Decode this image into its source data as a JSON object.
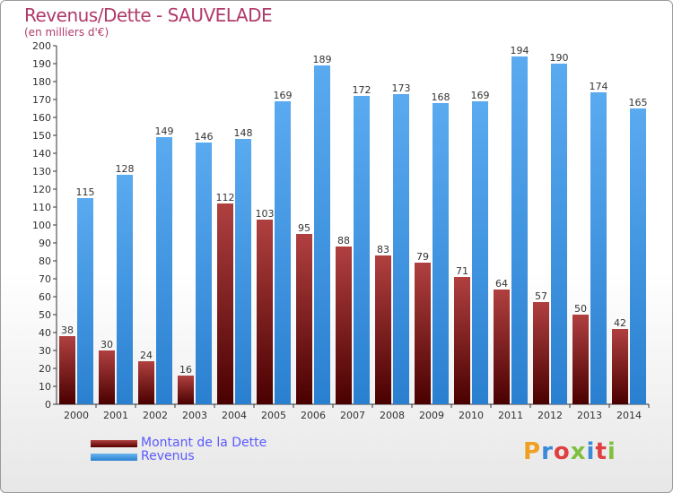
{
  "header": {
    "title": "Revenus/Dette - SAUVELADE",
    "subtitle": "(en milliers d'€)"
  },
  "legend": {
    "debt_label": "Montant de la Dette",
    "revenue_label": "Revenus"
  },
  "logo": {
    "text": "Proxiti",
    "colors": [
      "#f0a020",
      "#3a8ad8",
      "#e04040",
      "#80c040",
      "#3a8ad8",
      "#e04040",
      "#80c040"
    ]
  },
  "colors": {
    "debt_top": "#b04040",
    "debt_bottom": "#5a0000",
    "revenue_top": "#6ab4f0",
    "revenue_bottom": "#2a7fcf",
    "title": "#b03a6a",
    "legend_text": "#5a5aff"
  },
  "chart_data": {
    "type": "bar",
    "title": "Revenus/Dette - SAUVELADE",
    "subtitle": "(en milliers d'€)",
    "ylim": [
      0,
      200
    ],
    "ytick_step": 10,
    "grid": false,
    "legend_position": "bottom-left",
    "categories": [
      "2000",
      "2001",
      "2002",
      "2003",
      "2004",
      "2005",
      "2006",
      "2007",
      "2008",
      "2009",
      "2010",
      "2011",
      "2012",
      "2013",
      "2014"
    ],
    "series": [
      {
        "name": "Montant de la Dette",
        "values": [
          38,
          30,
          24,
          16,
          112,
          103,
          95,
          88,
          83,
          79,
          71,
          64,
          57,
          50,
          42
        ]
      },
      {
        "name": "Revenus",
        "values": [
          115,
          128,
          149,
          146,
          148,
          169,
          189,
          172,
          173,
          168,
          169,
          194,
          190,
          174,
          165
        ]
      }
    ]
  }
}
